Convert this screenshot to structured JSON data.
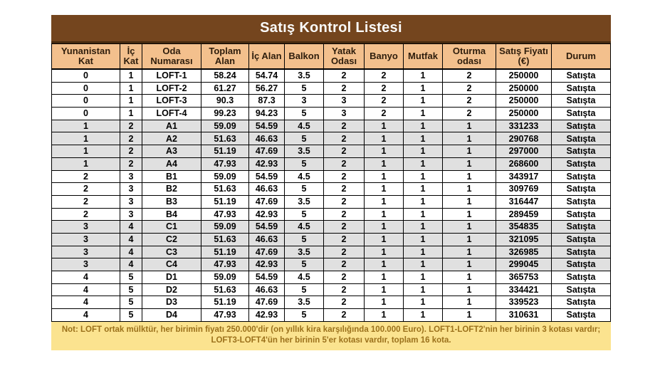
{
  "title": "Satış Kontrol Listesi",
  "table": {
    "columns": [
      "Yunanistan Kat",
      "İç Kat",
      "Oda Numarası",
      "Toplam Alan",
      "İç Alan",
      "Balkon",
      "Yatak Odası",
      "Banyo",
      "Mutfak",
      "Oturma odası",
      "Satış Fiyatı (€)",
      "Durum"
    ],
    "rows": [
      [
        "0",
        "1",
        "LOFT-1",
        "58.24",
        "54.74",
        "3.5",
        "2",
        "2",
        "1",
        "2",
        "250000",
        "Satışta"
      ],
      [
        "0",
        "1",
        "LOFT-2",
        "61.27",
        "56.27",
        "5",
        "2",
        "2",
        "1",
        "2",
        "250000",
        "Satışta"
      ],
      [
        "0",
        "1",
        "LOFT-3",
        "90.3",
        "87.3",
        "3",
        "3",
        "2",
        "1",
        "2",
        "250000",
        "Satışta"
      ],
      [
        "0",
        "1",
        "LOFT-4",
        "99.23",
        "94.23",
        "5",
        "3",
        "2",
        "1",
        "2",
        "250000",
        "Satışta"
      ],
      [
        "1",
        "2",
        "A1",
        "59.09",
        "54.59",
        "4.5",
        "2",
        "1",
        "1",
        "1",
        "331233",
        "Satışta"
      ],
      [
        "1",
        "2",
        "A2",
        "51.63",
        "46.63",
        "5",
        "2",
        "1",
        "1",
        "1",
        "290768",
        "Satışta"
      ],
      [
        "1",
        "2",
        "A3",
        "51.19",
        "47.69",
        "3.5",
        "2",
        "1",
        "1",
        "1",
        "297000",
        "Satışta"
      ],
      [
        "1",
        "2",
        "A4",
        "47.93",
        "42.93",
        "5",
        "2",
        "1",
        "1",
        "1",
        "268600",
        "Satışta"
      ],
      [
        "2",
        "3",
        "B1",
        "59.09",
        "54.59",
        "4.5",
        "2",
        "1",
        "1",
        "1",
        "343917",
        "Satışta"
      ],
      [
        "2",
        "3",
        "B2",
        "51.63",
        "46.63",
        "5",
        "2",
        "1",
        "1",
        "1",
        "309769",
        "Satışta"
      ],
      [
        "2",
        "3",
        "B3",
        "51.19",
        "47.69",
        "3.5",
        "2",
        "1",
        "1",
        "1",
        "316447",
        "Satışta"
      ],
      [
        "2",
        "3",
        "B4",
        "47.93",
        "42.93",
        "5",
        "2",
        "1",
        "1",
        "1",
        "289459",
        "Satışta"
      ],
      [
        "3",
        "4",
        "C1",
        "59.09",
        "54.59",
        "4.5",
        "2",
        "1",
        "1",
        "1",
        "354835",
        "Satışta"
      ],
      [
        "3",
        "4",
        "C2",
        "51.63",
        "46.63",
        "5",
        "2",
        "1",
        "1",
        "1",
        "321095",
        "Satışta"
      ],
      [
        "3",
        "4",
        "C3",
        "51.19",
        "47.69",
        "3.5",
        "2",
        "1",
        "1",
        "1",
        "326985",
        "Satışta"
      ],
      [
        "3",
        "4",
        "C4",
        "47.93",
        "42.93",
        "5",
        "2",
        "1",
        "1",
        "1",
        "299045",
        "Satışta"
      ],
      [
        "4",
        "5",
        "D1",
        "59.09",
        "54.59",
        "4.5",
        "2",
        "1",
        "1",
        "1",
        "365753",
        "Satışta"
      ],
      [
        "4",
        "5",
        "D2",
        "51.63",
        "46.63",
        "5",
        "2",
        "1",
        "1",
        "1",
        "334421",
        "Satışta"
      ],
      [
        "4",
        "5",
        "D3",
        "51.19",
        "47.69",
        "3.5",
        "2",
        "1",
        "1",
        "1",
        "339523",
        "Satışta"
      ],
      [
        "4",
        "5",
        "D4",
        "47.93",
        "42.93",
        "5",
        "2",
        "1",
        "1",
        "1",
        "310631",
        "Satışta"
      ]
    ]
  },
  "note": "Not: LOFT ortak mülktür, her birimin fiyatı 250.000'dir (on yıllık kira karşılığında 100.000 Euro). LOFT1-LOFT2'nin her birinin 3 kotası vardır; LOFT3-LOFT4'ün her birinin 5'er kotası vardır, toplam 16 kota.",
  "colors": {
    "title_bg": "#74451e",
    "title_text": "#fbfbfb",
    "header_bg": "#f3c08d",
    "header_text": "#2e1d0c",
    "stripe_bg": "#e0e0e0",
    "note_bg": "#fbe38f",
    "note_text": "#9b711c"
  }
}
